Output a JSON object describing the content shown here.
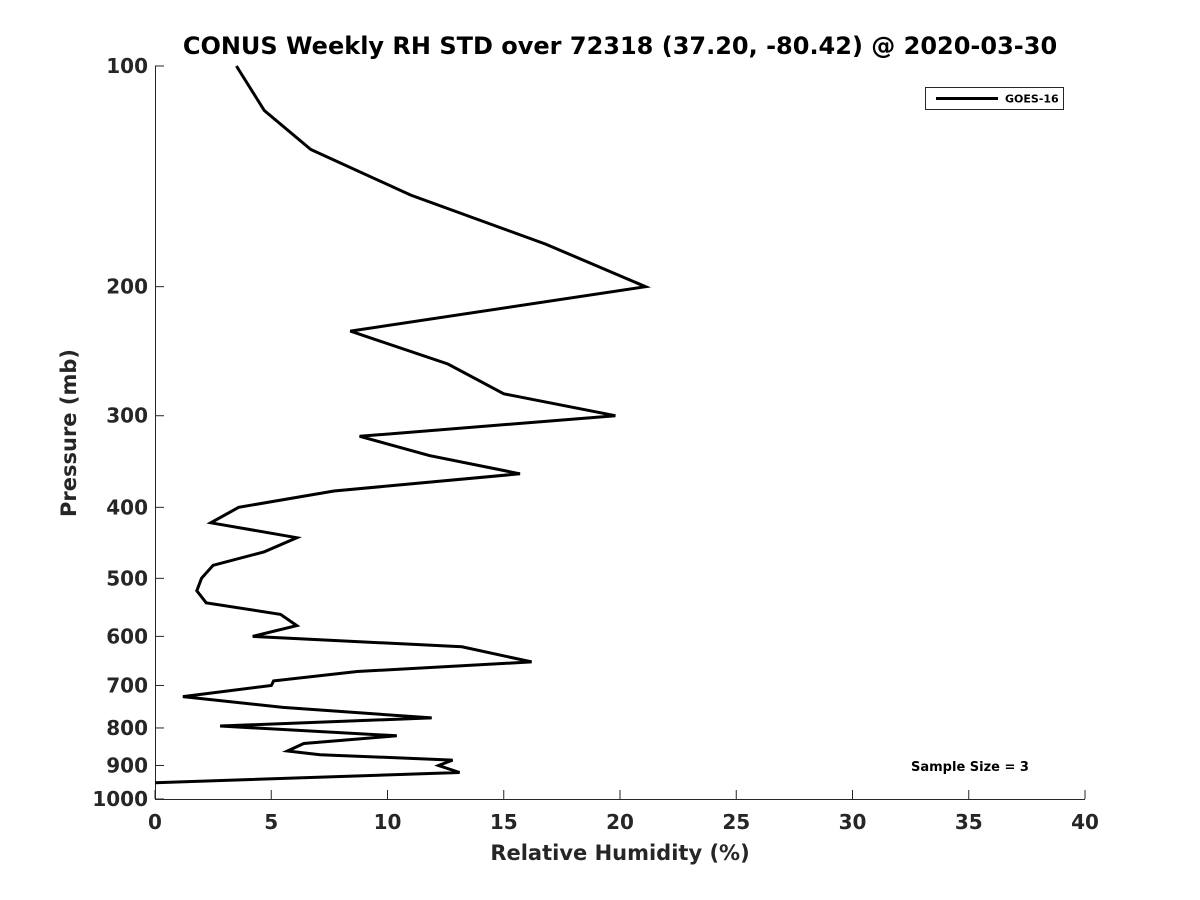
{
  "chart_data": {
    "type": "line",
    "title": "CONUS Weekly RH STD over 72318 (37.20, -80.42) @ 2020-03-30",
    "xlabel": "Relative Humidity (%)",
    "ylabel": "Pressure (mb)",
    "xlim": [
      0,
      40
    ],
    "ylim": [
      100,
      1000
    ],
    "y_scale": "log",
    "y_reversed": true,
    "xticks": [
      0,
      5,
      10,
      15,
      20,
      25,
      30,
      35,
      40
    ],
    "yticks": [
      100,
      200,
      300,
      400,
      500,
      600,
      700,
      800,
      900,
      1000
    ],
    "grid": false,
    "legend_position": "top-right",
    "series": [
      {
        "name": "GOES-16",
        "color": "#000000",
        "x": [
          3.5,
          4.7,
          6.7,
          11.0,
          16.8,
          21.1,
          8.4,
          12.6,
          15.0,
          19.8,
          8.8,
          11.8,
          15.7,
          7.7,
          3.6,
          2.4,
          6.1,
          4.7,
          2.5,
          2.0,
          1.8,
          2.2,
          5.4,
          6.1,
          4.2,
          13.2,
          16.2,
          8.7,
          5.1,
          5.0,
          1.2,
          5.5,
          11.9,
          2.8,
          10.4,
          6.4,
          5.7,
          7.1,
          12.8,
          12.2,
          13.1,
          0.0
        ],
        "y": [
          100,
          115,
          130,
          150,
          175,
          200,
          230,
          255,
          280,
          300,
          320,
          340,
          360,
          380,
          400,
          420,
          440,
          460,
          480,
          500,
          520,
          540,
          560,
          580,
          600,
          620,
          650,
          670,
          690,
          700,
          725,
          750,
          775,
          795,
          820,
          840,
          860,
          870,
          885,
          900,
          920,
          950
        ]
      }
    ],
    "annotations": [
      "Sample Size = 3"
    ]
  }
}
